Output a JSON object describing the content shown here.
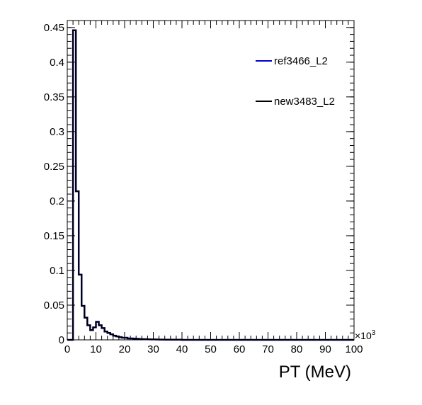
{
  "chart_data": {
    "type": "line",
    "title": "",
    "xlabel": "PT (MeV)",
    "ylabel": "",
    "x_multiplier_label": "×10",
    "x_multiplier_exp": "3",
    "xlim": [
      0,
      100
    ],
    "ylim": [
      0,
      0.46
    ],
    "x_ticks": [
      0,
      10,
      20,
      30,
      40,
      50,
      60,
      70,
      80,
      90,
      100
    ],
    "y_ticks": [
      0,
      0.05,
      0.1,
      0.15,
      0.2,
      0.25,
      0.3,
      0.35,
      0.4,
      0.45
    ],
    "y_tick_labels": [
      "0",
      "0.05",
      "0.1",
      "0.15",
      "0.2",
      "0.25",
      "0.3",
      "0.35",
      "0.4",
      "0.45"
    ],
    "grid": false,
    "legend_position": "top-right",
    "bin_width": 1,
    "series": [
      {
        "name": "ref3466_L2",
        "color": "#0000cc",
        "values": [
          0.0,
          0.0,
          0.446,
          0.214,
          0.094,
          0.049,
          0.032,
          0.021,
          0.014,
          0.018,
          0.026,
          0.021,
          0.017,
          0.012,
          0.01,
          0.008,
          0.006,
          0.005,
          0.004,
          0.003,
          0.003,
          0.002,
          0.002,
          0.0018,
          0.0015,
          0.0012,
          0.001,
          0.0009,
          0.0008,
          0.0007,
          0.0006,
          0.0005,
          0.0004,
          0.0004,
          0.0003,
          0.0003,
          0.0003,
          0.0002,
          0.0002,
          0.0002
        ]
      },
      {
        "name": "new3483_L2",
        "color": "#000000",
        "values": [
          0.0,
          0.0,
          0.446,
          0.214,
          0.094,
          0.049,
          0.032,
          0.021,
          0.014,
          0.018,
          0.026,
          0.021,
          0.017,
          0.012,
          0.01,
          0.008,
          0.006,
          0.005,
          0.004,
          0.003,
          0.003,
          0.002,
          0.002,
          0.0018,
          0.0015,
          0.0012,
          0.001,
          0.0009,
          0.0008,
          0.0007,
          0.0006,
          0.0005,
          0.0004,
          0.0004,
          0.0003,
          0.0003,
          0.0003,
          0.0002,
          0.0002,
          0.0002
        ]
      }
    ]
  }
}
